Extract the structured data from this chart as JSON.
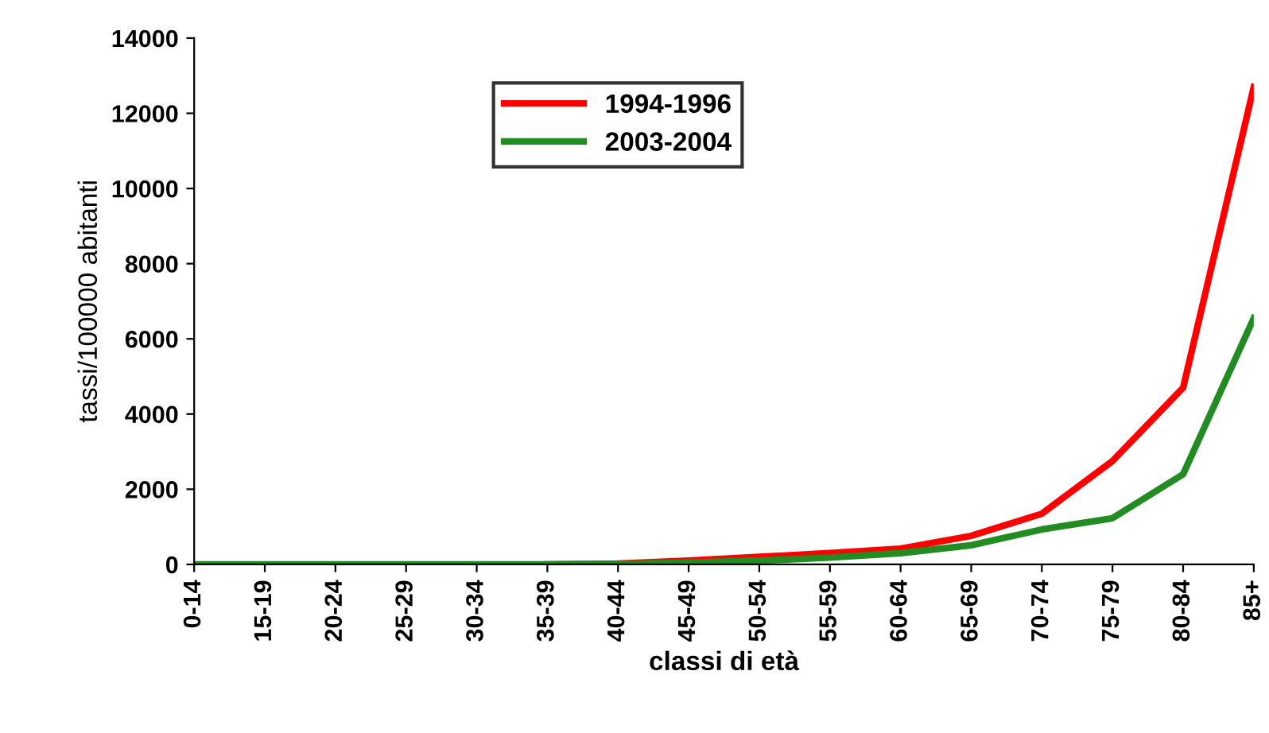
{
  "chart_data": {
    "type": "line",
    "xlabel": "classi di età",
    "ylabel": "tassi/100000 abitanti",
    "categories": [
      "0-14",
      "15-19",
      "20-24",
      "25-29",
      "30-34",
      "35-39",
      "40-44",
      "45-49",
      "50-54",
      "55-59",
      "60-64",
      "65-69",
      "70-74",
      "75-79",
      "80-84",
      "85+"
    ],
    "series": [
      {
        "name": "1994-1996",
        "color": "#ff0000",
        "values": [
          null,
          null,
          null,
          null,
          null,
          0,
          20,
          100,
          200,
          300,
          420,
          760,
          1350,
          2750,
          4700,
          12700
        ]
      },
      {
        "name": "2003-2004",
        "color": "#228b22",
        "values": [
          0,
          0,
          0,
          0,
          0,
          0,
          10,
          50,
          100,
          180,
          300,
          510,
          930,
          1230,
          2400,
          6550
        ]
      }
    ],
    "ylim": [
      0,
      14000
    ],
    "yticks": [
      0,
      2000,
      4000,
      6000,
      8000,
      10000,
      12000,
      14000
    ],
    "grid": false,
    "legend": "top",
    "marker": "none",
    "line_style": "solid"
  }
}
